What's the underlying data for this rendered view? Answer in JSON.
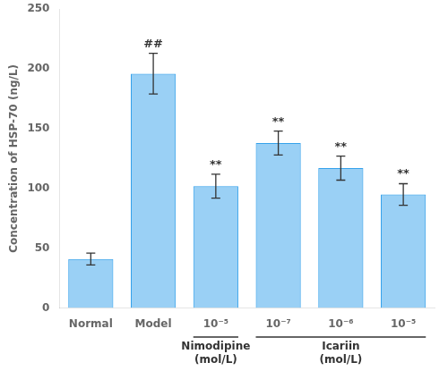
{
  "chart_data": {
    "type": "bar",
    "categories": [
      "Normal",
      "Model",
      "10⁻⁵",
      "10⁻⁷",
      "10⁻⁶",
      "10⁻⁵"
    ],
    "values": [
      41,
      196,
      102,
      138,
      117,
      95
    ],
    "errors": [
      5,
      17,
      10,
      10,
      10,
      9
    ],
    "significance": [
      null,
      "##",
      "**",
      "**",
      "**",
      "**"
    ],
    "groups": [
      {
        "label": "Nimodipine\n(mol/L)",
        "start": 2,
        "end": 2
      },
      {
        "label": "Icariin\n(mol/L)",
        "start": 3,
        "end": 5
      }
    ],
    "ylabel": "Concentration of HSP-70 (ng/L)",
    "ylim": [
      0,
      250
    ],
    "yticks": [
      0,
      50,
      100,
      150,
      200,
      250
    ],
    "grid": false
  }
}
